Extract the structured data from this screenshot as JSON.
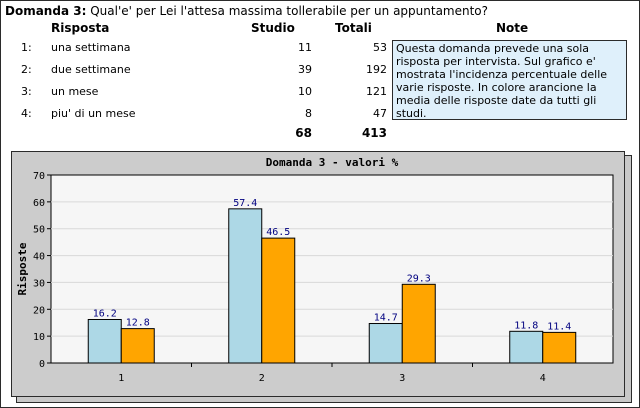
{
  "question": {
    "label": "Domanda 3:",
    "text": "Qual'e' per Lei l'attesa massima tollerabile per un appuntamento?"
  },
  "table": {
    "headers": {
      "risposta": "Risposta",
      "studio": "Studio",
      "totali": "Totali",
      "note": "Note"
    },
    "rows": [
      {
        "index": "1:",
        "risposta": "una settimana",
        "studio": "11",
        "totali": "53"
      },
      {
        "index": "2:",
        "risposta": "due settimane",
        "studio": "39",
        "totali": "192"
      },
      {
        "index": "3:",
        "risposta": "un mese",
        "studio": "10",
        "totali": "121"
      },
      {
        "index": "4:",
        "risposta": "piu' di un mese",
        "studio": "8",
        "totali": "47"
      }
    ],
    "totals": {
      "studio": "68",
      "totali": "413"
    },
    "note_text": "Questa domanda prevede una sola risposta per intervista. Sul grafico e' mostrata l'incidenza percentuale delle varie risposte. In colore arancione la media delle risposte date da tutti gli studi."
  },
  "chart_data": {
    "type": "bar",
    "title": "Domanda 3 - valori %",
    "xlabel": "",
    "ylabel": "Risposte",
    "categories": [
      "1",
      "2",
      "3",
      "4"
    ],
    "series": [
      {
        "values": [
          16.2,
          57.4,
          14.7,
          11.8
        ],
        "color": "#add8e6"
      },
      {
        "values": [
          12.8,
          46.5,
          29.3,
          11.4
        ],
        "color": "#ffa500"
      }
    ],
    "value_labels": [
      [
        "16.2",
        "57.4",
        "14.7",
        "11.8"
      ],
      [
        "12.8",
        "46.5",
        "29.3",
        "11.4"
      ]
    ],
    "ylim": [
      0,
      70
    ],
    "yticks": [
      "0",
      "10",
      "20",
      "30",
      "40",
      "50",
      "60",
      "70"
    ],
    "grid": true,
    "legend": "none"
  }
}
